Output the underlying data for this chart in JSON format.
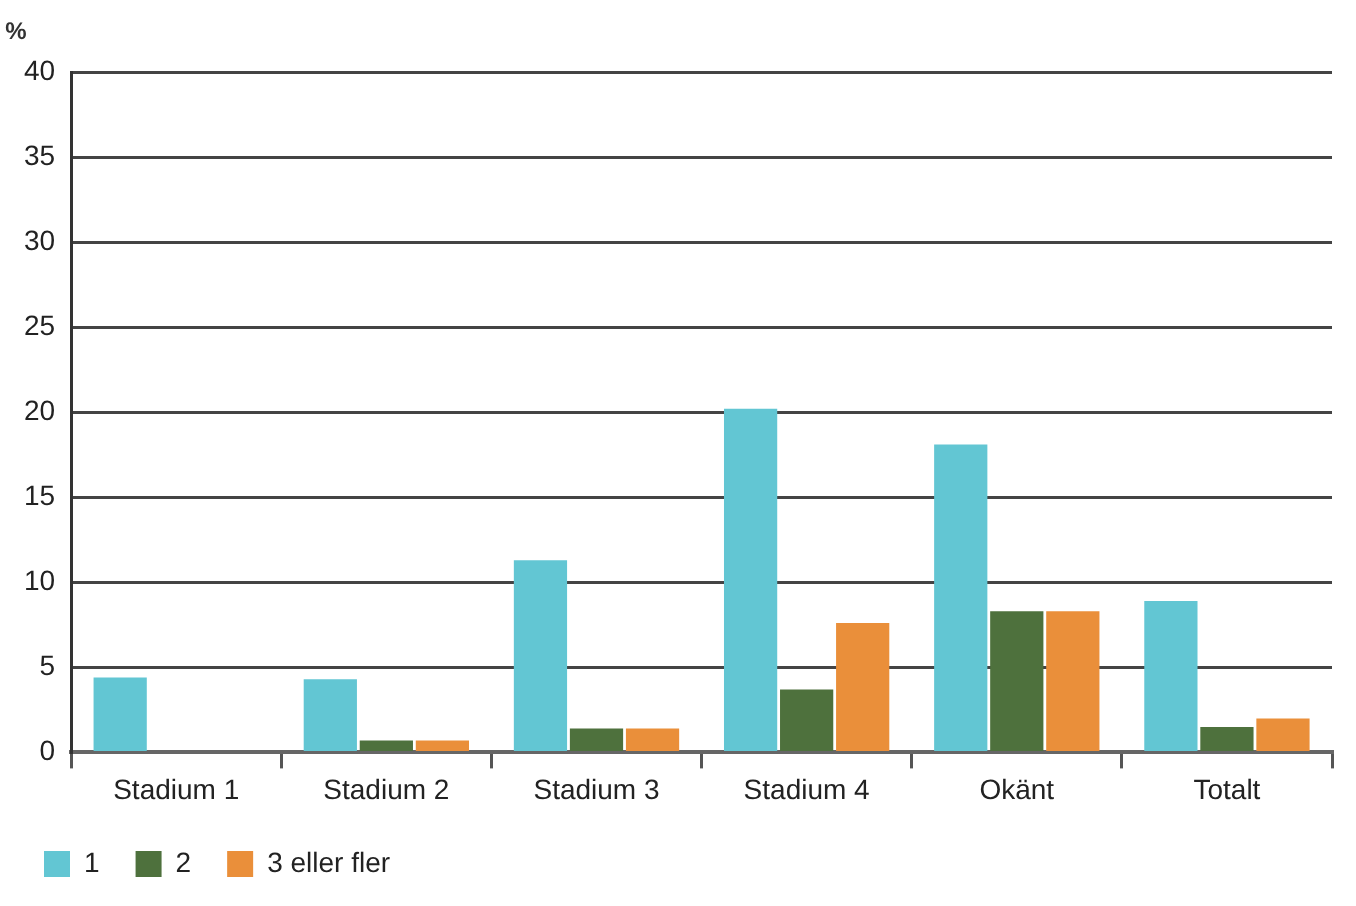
{
  "chart_data": {
    "type": "bar",
    "ylabel": "%",
    "categories": [
      "Stadium 1",
      "Stadium 2",
      "Stadium 3",
      "Stadium 4",
      "Okänt",
      "Totalt"
    ],
    "series": [
      {
        "name": "1",
        "color": "#62c6d3",
        "values": [
          4.4,
          4.3,
          11.3,
          20.2,
          18.1,
          8.9
        ]
      },
      {
        "name": "2",
        "color": "#4e713d",
        "values": [
          0,
          0.7,
          1.4,
          3.7,
          8.3,
          1.5
        ]
      },
      {
        "name": "3 eller fler",
        "color": "#ea8f3a",
        "values": [
          0,
          0.7,
          1.4,
          7.6,
          8.3,
          2.0
        ]
      }
    ],
    "ylim": [
      0,
      40
    ],
    "yticks": [
      0,
      5,
      10,
      15,
      20,
      25,
      30,
      35,
      40
    ],
    "grid": "y",
    "legend": "bottom left"
  }
}
